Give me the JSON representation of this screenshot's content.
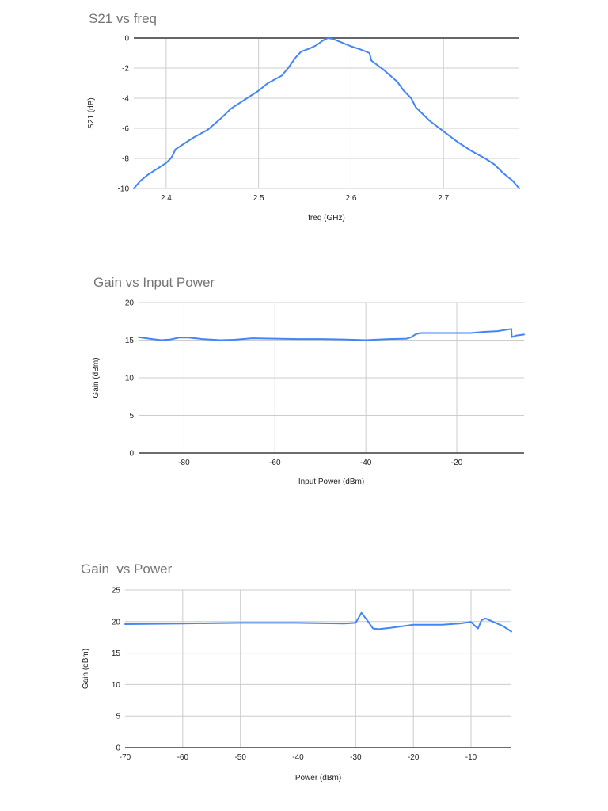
{
  "chart_data": [
    {
      "type": "line",
      "title": "S21 vs freq",
      "xlabel": "freq (GHz)",
      "ylabel": "S21 (dB)",
      "xlim": [
        2.365,
        2.782
      ],
      "ylim": [
        -10,
        0
      ],
      "xticks": [
        2.4,
        2.5,
        2.6,
        2.7
      ],
      "xtick_labels": [
        "2.4",
        "2.5",
        "2.6",
        "2.7"
      ],
      "yticks": [
        0,
        -2,
        -4,
        -6,
        -8,
        -10
      ],
      "ytick_labels": [
        "0",
        "-2",
        "-4",
        "-6",
        "-8",
        "-10"
      ],
      "grid": true,
      "legend": null,
      "color": "#4285f4",
      "series": [
        {
          "name": "S21",
          "x": [
            2.365,
            2.372,
            2.38,
            2.39,
            2.4,
            2.405,
            2.407,
            2.41,
            2.42,
            2.43,
            2.445,
            2.46,
            2.47,
            2.485,
            2.5,
            2.51,
            2.525,
            2.532,
            2.54,
            2.546,
            2.555,
            2.562,
            2.57,
            2.575,
            2.58,
            2.59,
            2.6,
            2.61,
            2.62,
            2.622,
            2.635,
            2.65,
            2.657,
            2.665,
            2.67,
            2.685,
            2.7,
            2.715,
            2.73,
            2.745,
            2.755,
            2.765,
            2.775,
            2.782
          ],
          "y": [
            -10.0,
            -9.5,
            -9.1,
            -8.7,
            -8.3,
            -8.0,
            -7.8,
            -7.4,
            -7.0,
            -6.6,
            -6.1,
            -5.3,
            -4.7,
            -4.1,
            -3.5,
            -3.0,
            -2.5,
            -2.0,
            -1.3,
            -0.9,
            -0.7,
            -0.5,
            -0.15,
            0.0,
            -0.05,
            -0.3,
            -0.55,
            -0.75,
            -1.0,
            -1.5,
            -2.1,
            -2.9,
            -3.5,
            -4.0,
            -4.6,
            -5.5,
            -6.2,
            -6.9,
            -7.5,
            -8.0,
            -8.4,
            -9.0,
            -9.5,
            -10.0
          ]
        }
      ]
    },
    {
      "type": "line",
      "title": "Gain vs Input Power",
      "xlabel": "Input Power (dBm)",
      "ylabel": "Gain (dBm)",
      "xlim": [
        -90,
        -5.2
      ],
      "ylim": [
        0,
        20
      ],
      "xticks": [
        -80,
        -60,
        -40,
        -20
      ],
      "xtick_labels": [
        "-80",
        "-60",
        "-40",
        "-20"
      ],
      "yticks": [
        0,
        5,
        10,
        15,
        20
      ],
      "ytick_labels": [
        "0",
        "5",
        "10",
        "15",
        "20"
      ],
      "grid": true,
      "legend": null,
      "color": "#4285f4",
      "series": [
        {
          "name": "Gain",
          "x": [
            -90,
            -87,
            -85,
            -83,
            -81,
            -79,
            -76,
            -72,
            -69,
            -65,
            -60,
            -55,
            -50,
            -45,
            -40,
            -35,
            -31,
            -30,
            -29,
            -28,
            -24,
            -20,
            -17,
            -14,
            -11,
            -8,
            -7.9,
            -7,
            -5.2
          ],
          "y": [
            15.4,
            15.15,
            15.0,
            15.1,
            15.35,
            15.35,
            15.15,
            15.0,
            15.05,
            15.25,
            15.2,
            15.15,
            15.15,
            15.1,
            15.0,
            15.15,
            15.2,
            15.4,
            15.8,
            15.95,
            15.95,
            15.95,
            15.95,
            16.1,
            16.2,
            16.5,
            15.4,
            15.6,
            15.75
          ]
        }
      ]
    },
    {
      "type": "line",
      "title": "Gain  vs Power",
      "xlabel": "Power (dBm)",
      "ylabel": "Gain (dBm)",
      "xlim": [
        -70,
        -3
      ],
      "ylim": [
        0,
        25
      ],
      "xticks": [
        -70,
        -60,
        -50,
        -40,
        -30,
        -20,
        -10
      ],
      "xtick_labels": [
        "-70",
        "-60",
        "-50",
        "-40",
        "-30",
        "-20",
        "-10"
      ],
      "yticks": [
        0,
        5,
        10,
        15,
        20,
        25
      ],
      "ytick_labels": [
        "0",
        "5",
        "10",
        "15",
        "20",
        "25"
      ],
      "grid": true,
      "legend": null,
      "color": "#4285f4",
      "series": [
        {
          "name": "Gain",
          "x": [
            -70,
            -60,
            -50,
            -40,
            -32,
            -30,
            -29,
            -28,
            -27,
            -26,
            -24,
            -20,
            -15,
            -12,
            -10,
            -9.3,
            -8.8,
            -8.2,
            -7.5,
            -6,
            -4.5,
            -3
          ],
          "y": [
            19.6,
            19.7,
            19.8,
            19.8,
            19.7,
            19.8,
            21.4,
            20.2,
            18.9,
            18.8,
            19.0,
            19.5,
            19.5,
            19.7,
            19.95,
            19.3,
            18.9,
            20.2,
            20.5,
            19.9,
            19.3,
            18.4
          ]
        }
      ]
    }
  ],
  "charts": [
    {
      "title": "S21 vs freq",
      "xlabel": "freq (GHz)",
      "ylabel": "S21 (dB)"
    },
    {
      "title": "Gain vs Input Power",
      "xlabel": "Input Power (dBm)",
      "ylabel": "Gain (dBm)"
    },
    {
      "title": "Gain  vs Power",
      "xlabel": "Power (dBm)",
      "ylabel": "Gain (dBm)"
    }
  ]
}
